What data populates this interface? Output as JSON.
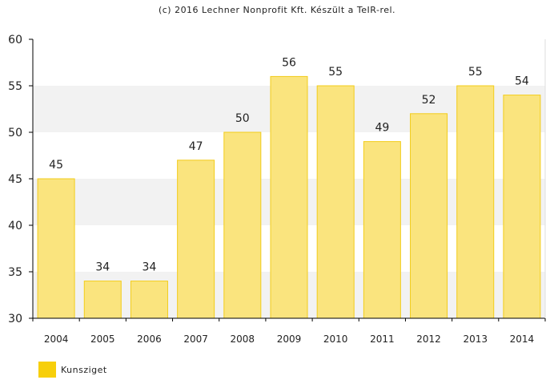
{
  "credit": "(c) 2016 Lechner Nonprofit Kft. Készült a TeIR-rel.",
  "colors": {
    "bar_fill": "#fae47e",
    "bar_stroke": "#f2cc1a",
    "legend_swatch": "#f7cf0a",
    "band": "#f2f2f2",
    "axis": "#000000"
  },
  "chart_data": {
    "type": "bar",
    "title": "",
    "xlabel": "",
    "ylabel": "",
    "categories": [
      "2004",
      "2005",
      "2006",
      "2007",
      "2008",
      "2009",
      "2010",
      "2011",
      "2012",
      "2013",
      "2014"
    ],
    "series": [
      {
        "name": "Kunsziget",
        "values": [
          45,
          34,
          34,
          47,
          50,
          56,
          55,
          49,
          52,
          55,
          54
        ]
      }
    ],
    "ylim": [
      30,
      60
    ],
    "yticks": [
      "30",
      "35",
      "40",
      "45",
      "50",
      "55",
      "60"
    ],
    "data_labels": [
      "45",
      "34",
      "34",
      "47",
      "50",
      "56",
      "55",
      "49",
      "52",
      "55",
      "54"
    ],
    "grid": "alternating horizontal bands",
    "legend_position": "bottom-left"
  }
}
